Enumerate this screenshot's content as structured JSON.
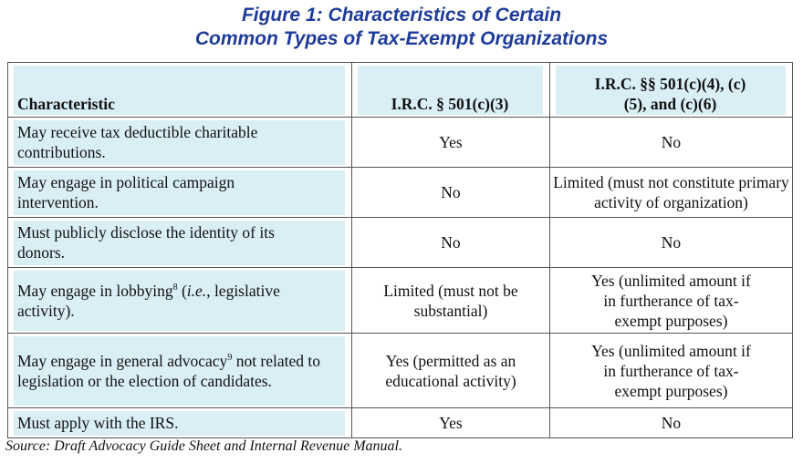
{
  "title": [
    "Figure 1:  Characteristics of Certain",
    "Common Types of Tax-Exempt Organizations"
  ],
  "table": {
    "header": [
      "Characteristic",
      "I.R.C. § 501(c)(3)",
      "I.R.C. §§ 501(c)(4), (c)(5), and (c)(6)"
    ],
    "rows": [
      [
        "May receive tax deductible charitable contributions.",
        "Yes",
        "No"
      ],
      [
        "May engage in political campaign intervention.",
        "No",
        "Limited (must not constitute primary activity of organization)"
      ],
      [
        "Must publicly disclose the identity of its donors.",
        "No",
        "No"
      ],
      [
        [
          "May engage in lobbying",
          "8",
          " (",
          "i.e.",
          ", legislative activity)."
        ],
        "Limited (must not be substantial)",
        "Yes (unlimited amount if in furtherance of tax-exempt purposes)"
      ],
      [
        [
          "May engage in general advocacy",
          "9",
          " not related to legislation or the election of candidates."
        ],
        "Yes (permitted as an educational activity)",
        "Yes (unlimited amount if in furtherance of tax-exempt purposes)"
      ],
      [
        "Must apply with the IRS.",
        "Yes",
        "No"
      ]
    ]
  },
  "source": "Source:  Draft Advocacy Guide Sheet and Internal Revenue Manual."
}
